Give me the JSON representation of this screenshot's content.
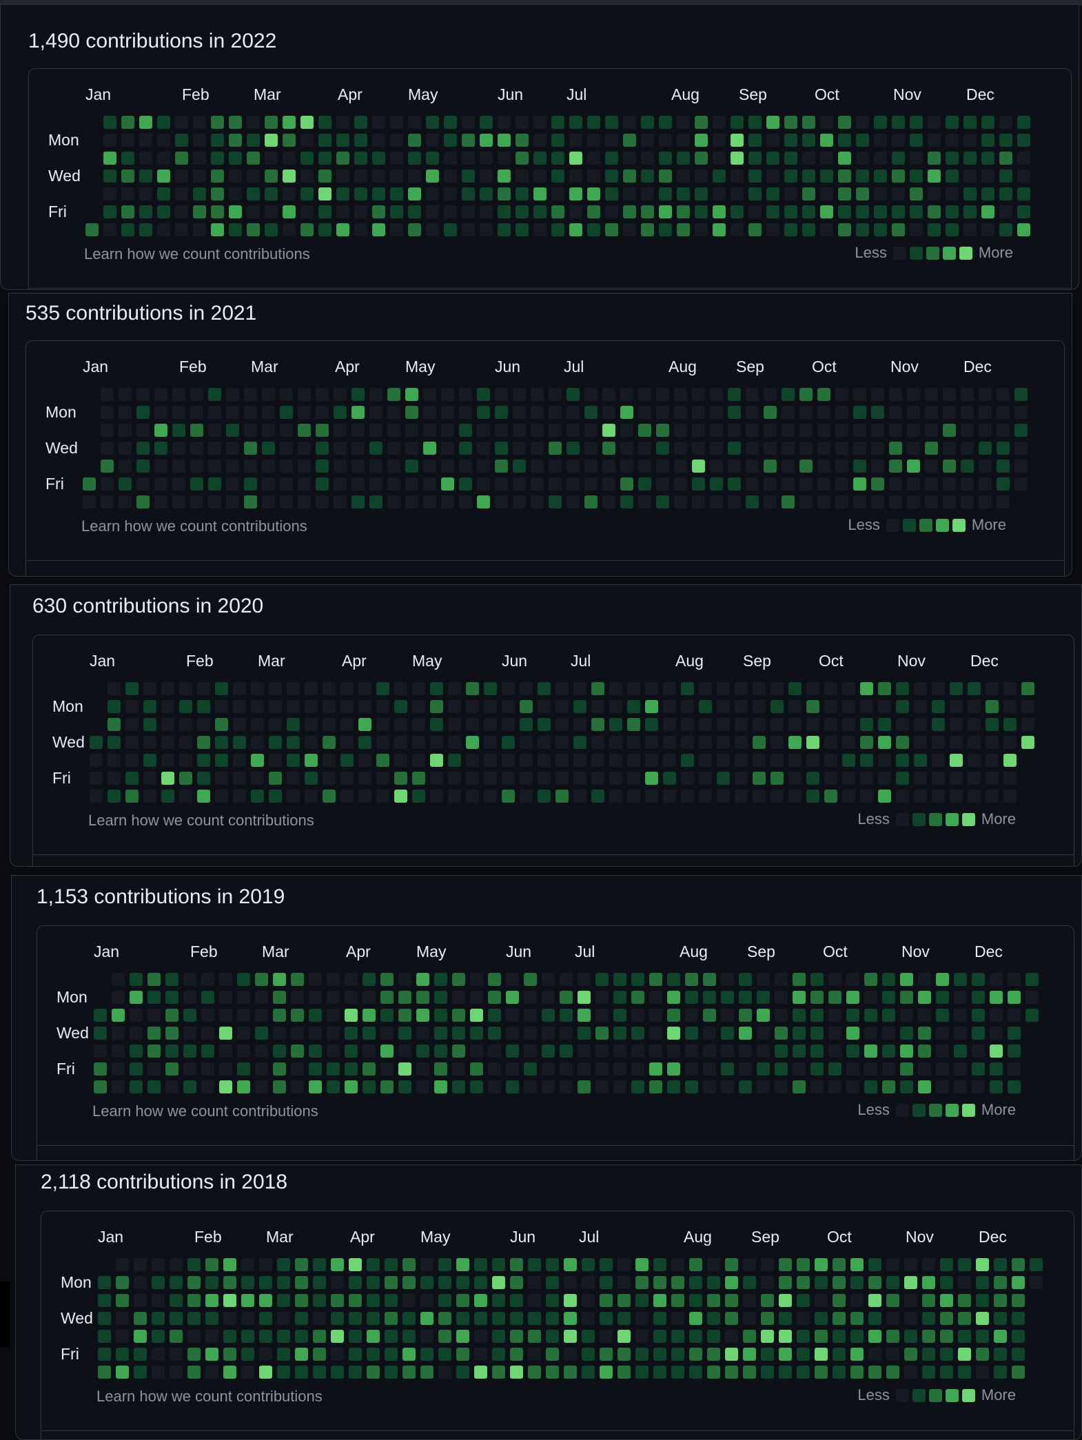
{
  "colors": {
    "level0": "#161b22",
    "level1": "#0e4429",
    "level2": "#26703a",
    "level3": "#3ea951",
    "level4": "#6fd674"
  },
  "legend": {
    "less": "Less",
    "more": "More"
  },
  "learn_link": "Learn how we count contributions",
  "day_labels": [
    "Mon",
    "Wed",
    "Fri"
  ],
  "years": [
    {
      "title": "1,490 contributions in 2022",
      "months": [
        "Jan",
        "Feb",
        "Mar",
        "Apr",
        "May",
        "Jun",
        "Jul",
        "Aug",
        "Sep",
        "Oct",
        "Nov",
        "Dec"
      ],
      "first_day_offset": 6,
      "activity": 0.62,
      "seed": 2022
    },
    {
      "title": "535 contributions in 2021",
      "months": [
        "Jan",
        "Feb",
        "Mar",
        "Apr",
        "May",
        "Jun",
        "Jul",
        "Aug",
        "Sep",
        "Oct",
        "Nov",
        "Dec"
      ],
      "first_day_offset": 5,
      "activity": 0.28,
      "seed": 2021
    },
    {
      "title": "630 contributions in 2020",
      "months": [
        "Jan",
        "Feb",
        "Mar",
        "Apr",
        "May",
        "Jun",
        "Jul",
        "Aug",
        "Sep",
        "Oct",
        "Nov",
        "Dec"
      ],
      "first_day_offset": 3,
      "activity": 0.34,
      "seed": 2020
    },
    {
      "title": "1,153 contributions in 2019",
      "months": [
        "Jan",
        "Feb",
        "Mar",
        "Apr",
        "May",
        "Jun",
        "Jul",
        "Aug",
        "Sep",
        "Oct",
        "Nov",
        "Dec"
      ],
      "first_day_offset": 2,
      "activity": 0.55,
      "seed": 2019
    },
    {
      "title": "2,118 contributions in 2018",
      "months": [
        "Jan",
        "Feb",
        "Mar",
        "Apr",
        "May",
        "Jun",
        "Jul",
        "Aug",
        "Sep",
        "Oct",
        "Nov",
        "Dec"
      ],
      "first_day_offset": 1,
      "activity": 0.78,
      "seed": 2018
    }
  ]
}
